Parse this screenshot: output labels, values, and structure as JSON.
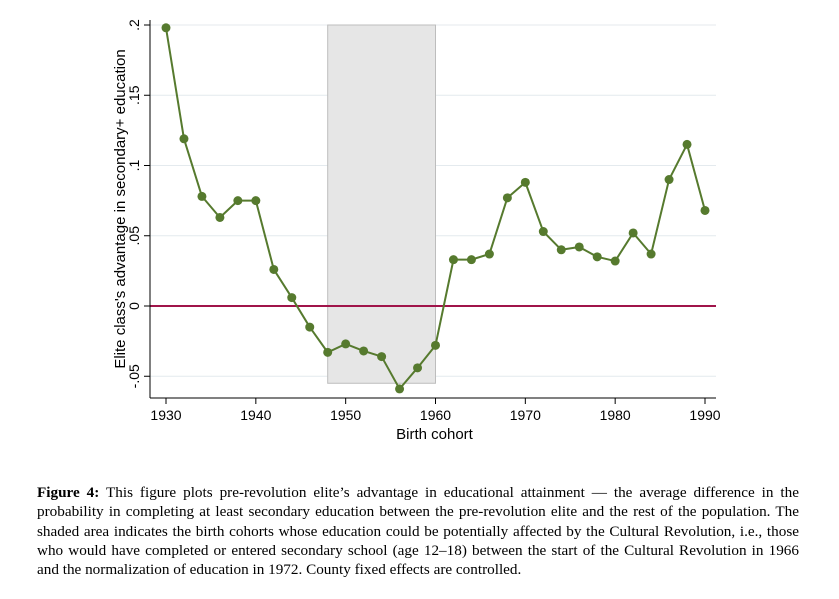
{
  "chart_data": {
    "type": "line",
    "title": "",
    "xlabel": "Birth cohort",
    "ylabel": "Elite class's advantage in secondary+ education",
    "x_ticks": [
      1930,
      1940,
      1950,
      1960,
      1970,
      1980,
      1990
    ],
    "y_ticks": [
      "-.05",
      "0",
      ".05",
      ".1",
      ".15",
      ".2"
    ],
    "y_tick_values": [
      -0.05,
      0,
      0.05,
      0.1,
      0.15,
      0.2
    ],
    "xlim": [
      1929,
      1991
    ],
    "ylim": [
      -0.06,
      0.2
    ],
    "grid": true,
    "series": [
      {
        "color": "#567a2e",
        "x": [
          1930,
          1932,
          1934,
          1936,
          1938,
          1940,
          1942,
          1944,
          1946,
          1948,
          1950,
          1952,
          1954,
          1956,
          1958,
          1960,
          1962,
          1964,
          1966,
          1968,
          1970,
          1972,
          1974,
          1976,
          1978,
          1980,
          1982,
          1984,
          1986,
          1988,
          1990
        ],
        "y": [
          0.198,
          0.119,
          0.078,
          0.063,
          0.075,
          0.075,
          0.026,
          0.006,
          -0.015,
          -0.033,
          -0.027,
          -0.032,
          -0.036,
          -0.059,
          -0.044,
          -0.028,
          0.033,
          0.033,
          0.037,
          0.077,
          0.088,
          0.053,
          0.04,
          0.042,
          0.035,
          0.032,
          0.052,
          0.037,
          0.09,
          0.115,
          0.068
        ]
      }
    ],
    "reference_line": {
      "y": 0,
      "color": "#a0144a"
    },
    "shaded_region": {
      "x": [
        1948,
        1960
      ],
      "y": [
        -0.055,
        0.2
      ],
      "color": "#e6e6e6"
    }
  },
  "caption": {
    "label": "Figure 4:",
    "text": "This figure plots pre-revolution elite’s advantage in educational attainment — the average difference in the probability in completing at least secondary education between the pre-revolution elite and the rest of the population. The shaded area indicates the birth cohorts whose education could be potentially affected by the Cultural Revolution, i.e., those who would have completed or entered secondary school (age 12–18) between the start of the Cultural Revolution in 1966 and the normalization of education in 1972. County fixed effects are controlled."
  }
}
